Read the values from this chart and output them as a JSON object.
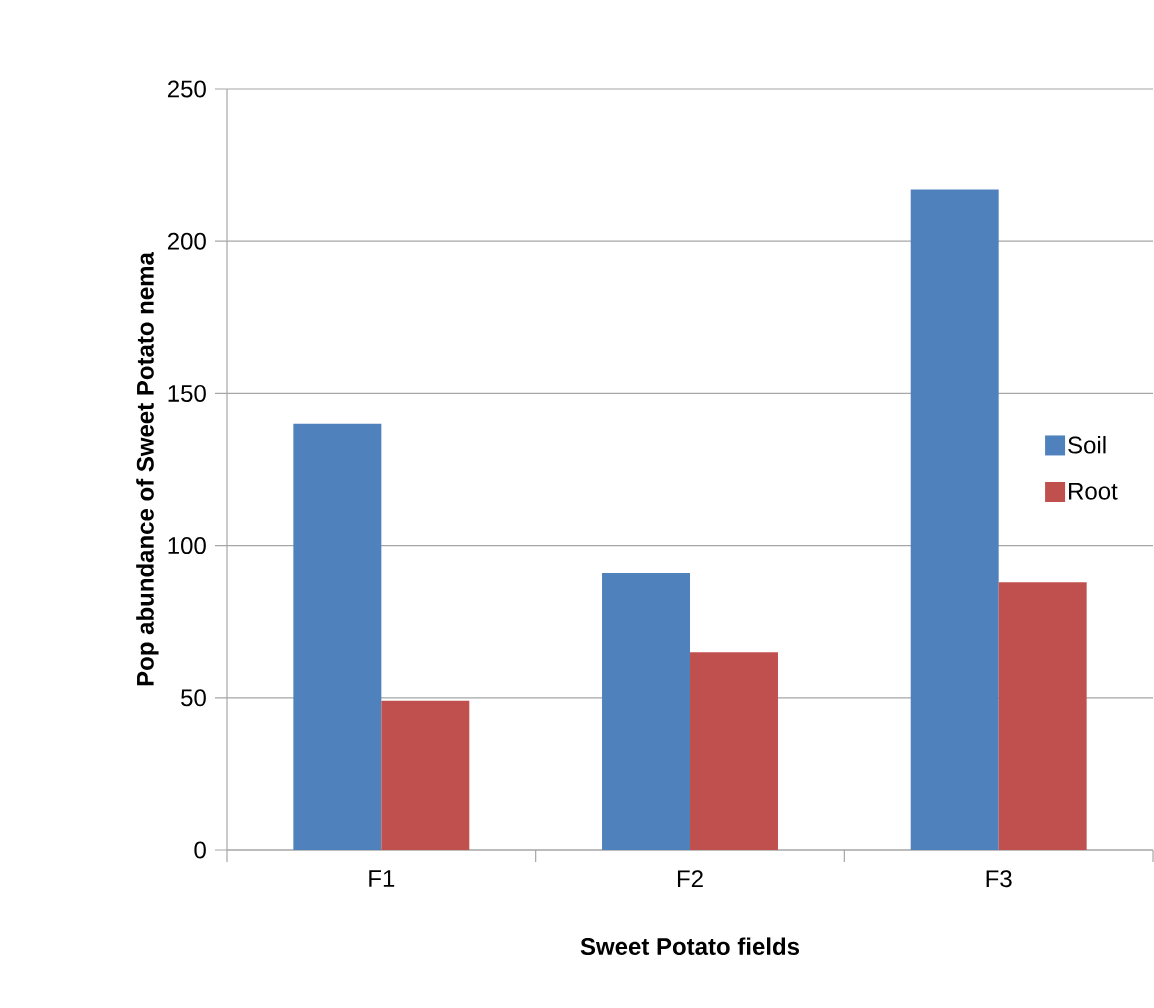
{
  "chart_data": {
    "type": "bar",
    "xlabel": "Sweet Potato fields",
    "ylabel": "Pop abundance of Sweet Potato nema",
    "categories": [
      "F1",
      "F2",
      "F3"
    ],
    "series": [
      {
        "name": "Soil",
        "color": "#4f81bd",
        "values": [
          140,
          91,
          217
        ]
      },
      {
        "name": "Root",
        "color": "#c0504d",
        "values": [
          49,
          65,
          88
        ]
      }
    ],
    "ylim": [
      0,
      250
    ],
    "yticks": [
      0,
      50,
      100,
      150,
      200,
      250
    ],
    "grid": "y",
    "legend": "right"
  }
}
